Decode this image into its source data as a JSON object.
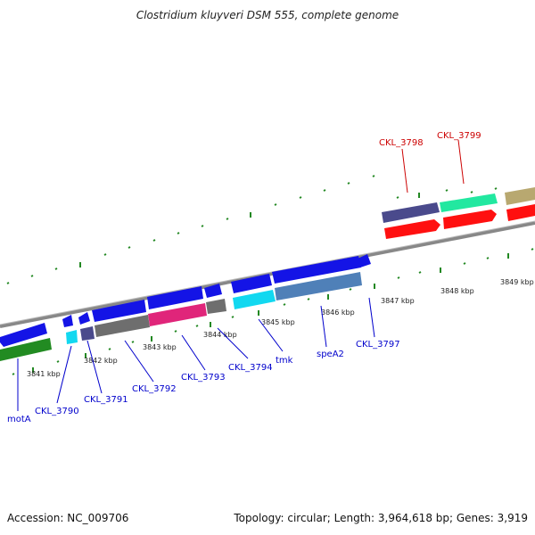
{
  "title": "Clostridium kluyveri DSM 555, complete genome",
  "footer": {
    "accession": "Accession: NC_009706",
    "stats": "Topology: circular; Length: 3,964,618 bp; Genes: 3,919"
  },
  "colors": {
    "axis": "#888888",
    "tick": "#228822",
    "forward_label": "#cc0000",
    "reverse_label": "#0000cc",
    "blue_gene": "#1414e6",
    "green_gene": "#228b22",
    "cyan_gene": "#12d8f0",
    "slate_gene": "#4a4a8c",
    "gray_gene": "#6e6e6e",
    "pink_gene": "#e0257a",
    "steel_gene": "#4f80b8",
    "red_gene": "#ff1010",
    "mint_gene": "#22e8a0",
    "olive_gene": "#b8a870"
  },
  "kbp_ticks": [
    "3841 kbp",
    "3842 kbp",
    "3843 kbp",
    "3844 kbp",
    "3845 kbp",
    "3846 kbp",
    "3847 kbp",
    "3848 kbp",
    "3849 kbp"
  ],
  "forward_genes": [
    "CKL_3798",
    "CKL_3799"
  ],
  "reverse_genes": [
    "motA",
    "CKL_3790",
    "CKL_3791",
    "CKL_3792",
    "CKL_3793",
    "CKL_3794",
    "tmk",
    "speA2",
    "CKL_3797"
  ]
}
